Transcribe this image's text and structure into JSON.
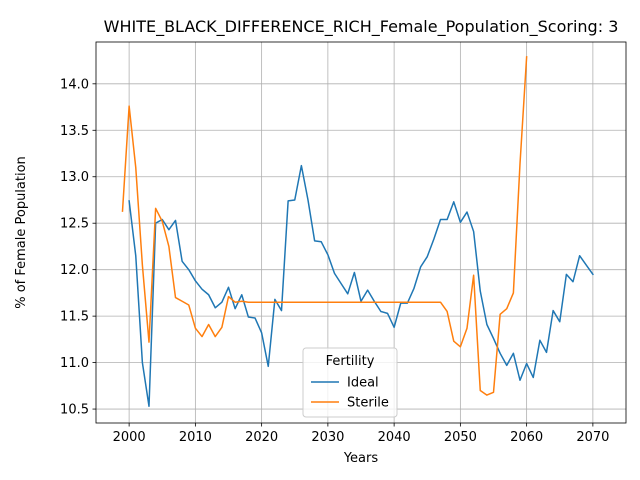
{
  "chart_data": {
    "type": "line",
    "title": "WHITE_BLACK_DIFFERENCE_RICH_Female_Population_Scoring: 3",
    "xlabel": "Years",
    "ylabel": "% of Female Population",
    "xlim": [
      1995,
      2075
    ],
    "ylim": [
      10.35,
      14.45
    ],
    "xticks": [
      2000,
      2010,
      2020,
      2030,
      2040,
      2050,
      2060,
      2070
    ],
    "yticks": [
      10.5,
      11.0,
      11.5,
      12.0,
      12.5,
      13.0,
      13.5,
      14.0
    ],
    "grid": true,
    "legend": {
      "title": "Fertility",
      "placement": "lower-center"
    },
    "series": [
      {
        "name": "Ideal",
        "color": "#1f77b4",
        "x": [
          2000,
          2001,
          2002,
          2003,
          2004,
          2005,
          2006,
          2007,
          2008,
          2009,
          2010,
          2011,
          2012,
          2013,
          2014,
          2015,
          2016,
          2017,
          2018,
          2019,
          2020,
          2021,
          2022,
          2023,
          2024,
          2025,
          2026,
          2027,
          2028,
          2029,
          2030,
          2031,
          2032,
          2033,
          2034,
          2035,
          2036,
          2037,
          2038,
          2039,
          2040,
          2041,
          2042,
          2043,
          2044,
          2045,
          2046,
          2047,
          2048,
          2049,
          2050,
          2051,
          2052,
          2053,
          2054,
          2055,
          2056,
          2057,
          2058,
          2059,
          2060,
          2061,
          2062,
          2063,
          2064,
          2065,
          2066,
          2067,
          2068,
          2069,
          2070
        ],
        "y": [
          12.74,
          12.15,
          11.0,
          10.53,
          12.5,
          12.54,
          12.43,
          12.53,
          12.09,
          12.0,
          11.88,
          11.79,
          11.73,
          11.59,
          11.65,
          11.81,
          11.58,
          11.73,
          11.49,
          11.48,
          11.32,
          10.96,
          11.68,
          11.56,
          12.74,
          12.75,
          13.12,
          12.75,
          12.31,
          12.3,
          12.16,
          11.96,
          11.85,
          11.74,
          11.97,
          11.66,
          11.78,
          11.66,
          11.55,
          11.53,
          11.38,
          11.64,
          11.64,
          11.8,
          12.03,
          12.14,
          12.33,
          12.54,
          12.54,
          12.73,
          12.51,
          12.62,
          12.41,
          11.77,
          11.41,
          11.26,
          11.1,
          10.97,
          11.1,
          10.81,
          10.99,
          10.84,
          11.24,
          11.11,
          11.56,
          11.44,
          11.95,
          11.87,
          12.15,
          12.05,
          11.95
        ]
      },
      {
        "name": "Sterile",
        "color": "#ff7f0e",
        "x": [
          1999,
          2000,
          2001,
          2002,
          2003,
          2004,
          2005,
          2006,
          2007,
          2008,
          2009,
          2010,
          2011,
          2012,
          2013,
          2014,
          2015,
          2016,
          2017,
          2018,
          2019,
          2020,
          2021,
          2022,
          2023,
          2024,
          2025,
          2026,
          2027,
          2028,
          2029,
          2030,
          2031,
          2032,
          2033,
          2034,
          2035,
          2036,
          2037,
          2038,
          2039,
          2040,
          2041,
          2042,
          2043,
          2044,
          2045,
          2046,
          2047,
          2048,
          2049,
          2050,
          2051,
          2052,
          2053,
          2054,
          2055,
          2056,
          2057,
          2058,
          2059,
          2060
        ],
        "y": [
          12.63,
          13.76,
          13.1,
          12.05,
          11.22,
          12.66,
          12.52,
          12.25,
          11.7,
          11.66,
          11.62,
          11.37,
          11.28,
          11.41,
          11.28,
          11.38,
          11.71,
          11.65,
          11.66,
          11.65,
          11.65,
          11.65,
          11.65,
          11.65,
          11.65,
          11.65,
          11.65,
          11.65,
          11.65,
          11.65,
          11.65,
          11.65,
          11.65,
          11.65,
          11.65,
          11.65,
          11.65,
          11.65,
          11.65,
          11.65,
          11.65,
          11.65,
          11.65,
          11.65,
          11.65,
          11.65,
          11.65,
          11.65,
          11.65,
          11.55,
          11.23,
          11.17,
          11.37,
          11.94,
          10.7,
          10.65,
          10.68,
          11.52,
          11.58,
          11.75,
          13.14,
          14.29
        ]
      }
    ]
  }
}
